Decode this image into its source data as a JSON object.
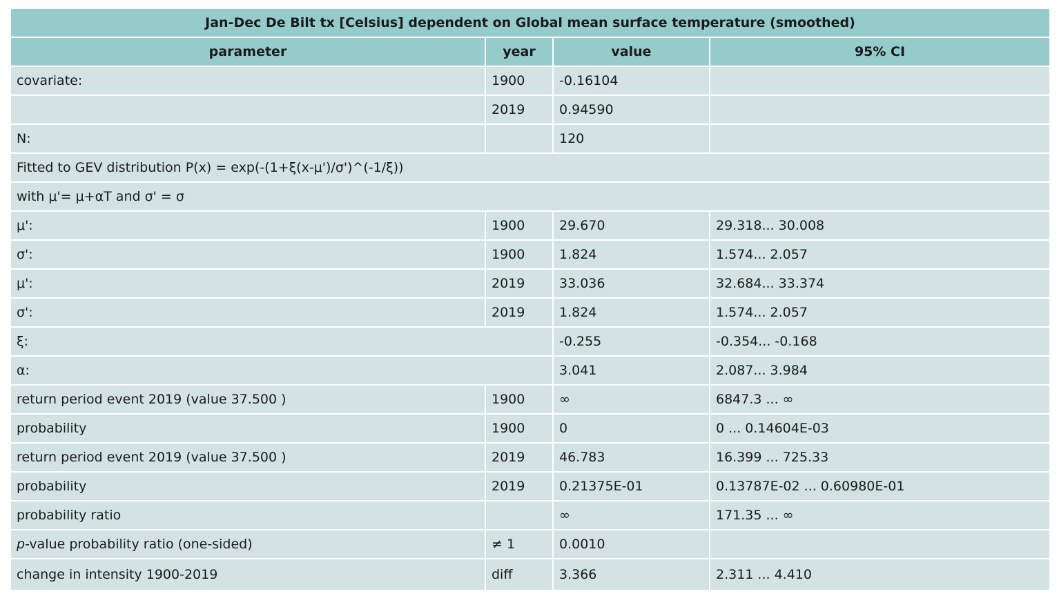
{
  "title": "Jan-Dec De Bilt tx [Celsius] dependent on Global mean surface temperature (smoothed)",
  "headers": [
    "parameter",
    "year",
    "value",
    "95% CI"
  ],
  "rows": [
    {
      "type": "cells",
      "name": "covariate-1900",
      "cells": [
        "covariate:",
        "1900",
        "-0.16104",
        ""
      ]
    },
    {
      "type": "cells",
      "name": "covariate-2019",
      "cells": [
        "",
        "2019",
        "0.94590",
        ""
      ]
    },
    {
      "type": "cells",
      "name": "n",
      "cells": [
        "N:",
        "",
        "120",
        ""
      ]
    },
    {
      "type": "full",
      "name": "distribution",
      "text": "Fitted to GEV distribution P(x) = exp(-(1+ξ(x-μ')/σ')^(-1/ξ))"
    },
    {
      "type": "full",
      "name": "definition",
      "text": "with μ'= μ+αT and σ' = σ"
    },
    {
      "type": "cells",
      "name": "mu-1900",
      "cells": [
        "μ':",
        "1900",
        "29.670",
        "29.318... 30.008"
      ]
    },
    {
      "type": "cells",
      "name": "sigma-1900",
      "cells": [
        "σ':",
        "1900",
        "1.824",
        "1.574... 2.057"
      ]
    },
    {
      "type": "cells",
      "name": "mu-2019",
      "cells": [
        "μ':",
        "2019",
        "33.036",
        "32.684... 33.374"
      ]
    },
    {
      "type": "cells",
      "name": "sigma-2019",
      "cells": [
        "σ':",
        "2019",
        "1.824",
        "1.574... 2.057"
      ]
    },
    {
      "type": "span2",
      "name": "xi",
      "cells": [
        "ξ:",
        "-0.255",
        "-0.354... -0.168"
      ]
    },
    {
      "type": "span2",
      "name": "alpha",
      "cells": [
        "α:",
        "3.041",
        "2.087... 3.984"
      ]
    },
    {
      "type": "cells",
      "name": "return-period-1900",
      "cells": [
        "return period event 2019 (value 37.500 )",
        "1900",
        "∞",
        "6847.3 ... ∞"
      ]
    },
    {
      "type": "cells",
      "name": "probability-1900",
      "cells": [
        "probability",
        "1900",
        "0",
        "0 ... 0.14604E-03"
      ]
    },
    {
      "type": "cells",
      "name": "return-period-2019",
      "cells": [
        "return period event 2019 (value 37.500 )",
        "2019",
        "46.783",
        "16.399 ... 725.33"
      ]
    },
    {
      "type": "cells",
      "name": "probability-2019",
      "cells": [
        "probability",
        "2019",
        "0.21375E-01",
        "0.13787E-02 ... 0.60980E-01"
      ]
    },
    {
      "type": "cells",
      "name": "probability-ratio",
      "cells": [
        "probability ratio",
        "",
        "∞",
        "171.35 ... ∞"
      ]
    },
    {
      "type": "pvalue",
      "name": "p-value",
      "italic": "p",
      "rest": "-value probability ratio (one-sided)",
      "cells": [
        "≠ 1",
        "0.0010",
        ""
      ]
    },
    {
      "type": "cells",
      "name": "change-in-intensity",
      "cells": [
        "change in intensity 1900-2019",
        "diff",
        "3.366",
        "2.311 ... 4.410"
      ]
    }
  ]
}
